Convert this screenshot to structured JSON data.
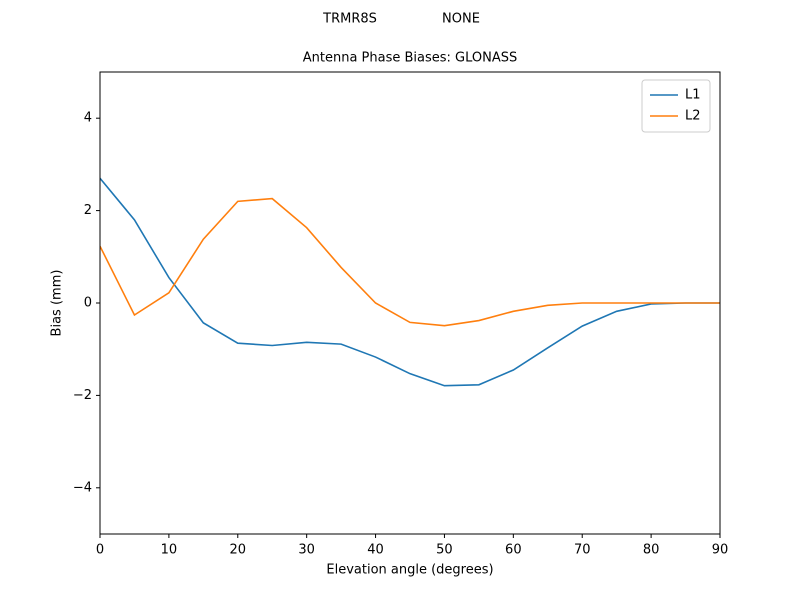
{
  "chart_data": {
    "type": "line",
    "suptitle_left": "TRMR8S",
    "suptitle_right": "NONE",
    "title": "Antenna Phase Biases: GLONASS",
    "x_label": "Elevation angle (degrees)",
    "y_label": "Bias (mm)",
    "x": [
      0,
      5,
      10,
      15,
      20,
      25,
      30,
      35,
      40,
      45,
      50,
      55,
      60,
      65,
      70,
      75,
      80,
      85,
      90
    ],
    "series": [
      {
        "name": "L1",
        "color": "#1f77b4",
        "values": [
          2.7,
          1.8,
          0.55,
          -0.43,
          -0.87,
          -0.92,
          -0.85,
          -0.89,
          -1.17,
          -1.53,
          -1.79,
          -1.77,
          -1.45,
          -0.97,
          -0.5,
          -0.18,
          -0.02,
          0.0,
          0.0
        ]
      },
      {
        "name": "L2",
        "color": "#ff7f0e",
        "values": [
          1.23,
          -0.26,
          0.22,
          1.38,
          2.2,
          2.26,
          1.63,
          0.77,
          0.0,
          -0.42,
          -0.49,
          -0.38,
          -0.18,
          -0.05,
          0.0,
          0.0,
          0.0,
          0.0,
          0.0
        ]
      }
    ],
    "xlim": [
      0,
      90
    ],
    "xticks": [
      0,
      10,
      20,
      30,
      40,
      50,
      60,
      70,
      80,
      90
    ],
    "ylim": [
      -5,
      5
    ],
    "yticks": [
      {
        "value": -4,
        "label": "−4"
      },
      {
        "value": -2,
        "label": "−2"
      },
      0,
      2,
      4
    ],
    "legend": "upper right",
    "grid": false
  }
}
